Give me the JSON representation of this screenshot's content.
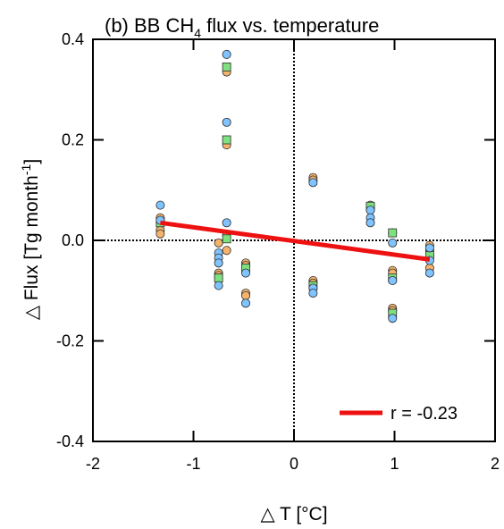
{
  "chart_data": {
    "type": "scatter",
    "title": "(b) BB CH",
    "title_subscript": "4",
    "title_rest": " flux vs. temperature",
    "xlabel": "△ T [°C]",
    "ylabel": "△ Flux [Tg month",
    "ylabel_superscript": "-1",
    "ylabel_end": "]",
    "xlim": [
      -2,
      2
    ],
    "ylim": [
      -0.4,
      0.4
    ],
    "x_ticks": [
      "-2",
      "-1",
      "0",
      "1",
      "2"
    ],
    "y_ticks": [
      "-0.4",
      "-0.2",
      "0.0",
      "0.2",
      "0.4"
    ],
    "grid": false,
    "zero_lines": true,
    "colors": {
      "orange": "#f5b46e",
      "green": "#7ee07e",
      "blue": "#7fc3ff",
      "fit_line": "#ee1111"
    },
    "series": [
      {
        "marker": "circle",
        "color": "orange",
        "points": [
          [
            -1.33,
            0.045
          ],
          [
            -1.33,
            0.035
          ],
          [
            -1.33,
            0.02
          ],
          [
            -1.33,
            0.013
          ],
          [
            -0.75,
            -0.005
          ],
          [
            -0.75,
            -0.065
          ],
          [
            -0.75,
            -0.07
          ],
          [
            -0.75,
            -0.075
          ],
          [
            -0.67,
            0.335
          ],
          [
            -0.67,
            0.19
          ],
          [
            -0.67,
            0.01
          ],
          [
            -0.67,
            -0.02
          ],
          [
            -0.48,
            -0.045
          ],
          [
            -0.48,
            -0.05
          ],
          [
            -0.48,
            -0.105
          ],
          [
            -0.48,
            -0.11
          ],
          [
            0.19,
            0.125
          ],
          [
            0.19,
            0.12
          ],
          [
            0.19,
            -0.08
          ],
          [
            0.19,
            -0.085
          ],
          [
            0.76,
            0.07
          ],
          [
            0.76,
            0.065
          ],
          [
            0.76,
            0.06
          ],
          [
            0.98,
            0.015
          ],
          [
            0.98,
            -0.06
          ],
          [
            0.98,
            -0.065
          ],
          [
            0.98,
            -0.135
          ],
          [
            0.98,
            -0.14
          ],
          [
            1.35,
            -0.01
          ],
          [
            1.35,
            -0.02
          ],
          [
            1.35,
            -0.03
          ],
          [
            1.35,
            -0.055
          ]
        ]
      },
      {
        "marker": "square",
        "color": "green",
        "points": [
          [
            -1.33,
            0.035
          ],
          [
            -0.75,
            -0.075
          ],
          [
            -0.67,
            0.345
          ],
          [
            -0.67,
            0.2
          ],
          [
            -0.67,
            0.003
          ],
          [
            -0.48,
            -0.055
          ],
          [
            0.19,
            -0.09
          ],
          [
            0.76,
            0.068
          ],
          [
            0.98,
            0.015
          ],
          [
            0.98,
            -0.075
          ],
          [
            0.98,
            -0.145
          ],
          [
            1.35,
            -0.03
          ]
        ]
      },
      {
        "marker": "circle",
        "color": "blue",
        "points": [
          [
            -1.33,
            0.07
          ],
          [
            -1.33,
            0.04
          ],
          [
            -0.75,
            -0.025
          ],
          [
            -0.75,
            -0.035
          ],
          [
            -0.75,
            -0.045
          ],
          [
            -0.75,
            -0.09
          ],
          [
            -0.67,
            0.37
          ],
          [
            -0.67,
            0.235
          ],
          [
            -0.67,
            0.035
          ],
          [
            -0.48,
            -0.065
          ],
          [
            -0.48,
            -0.125
          ],
          [
            0.19,
            0.115
          ],
          [
            0.19,
            -0.095
          ],
          [
            0.19,
            -0.105
          ],
          [
            0.76,
            0.06
          ],
          [
            0.76,
            0.045
          ],
          [
            0.76,
            0.035
          ],
          [
            0.98,
            -0.005
          ],
          [
            0.98,
            -0.08
          ],
          [
            0.98,
            -0.155
          ],
          [
            1.35,
            -0.015
          ],
          [
            1.35,
            -0.04
          ],
          [
            1.35,
            -0.065
          ]
        ]
      }
    ],
    "fit_line": {
      "x": [
        -1.33,
        1.35
      ],
      "y": [
        0.035,
        -0.038
      ]
    },
    "legend": {
      "label": "r = -0.23",
      "placement": "bottom-right"
    }
  }
}
